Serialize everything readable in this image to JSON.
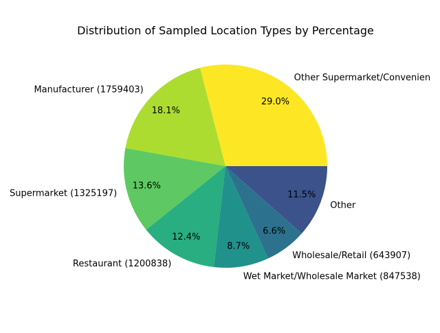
{
  "chart_data": {
    "type": "pie",
    "title": "Distribution of Sampled Location Types by Percentage",
    "slices": [
      {
        "label": "Other Supermarket/Convenien",
        "pct_label": "29.0%",
        "value": 29.0,
        "color": "#fde725"
      },
      {
        "label": "Manufacturer (1759403)",
        "pct_label": "18.1%",
        "value": 18.1,
        "color": "#addc30"
      },
      {
        "label": "Supermarket (1325197)",
        "pct_label": "13.6%",
        "value": 13.6,
        "color": "#5ec962"
      },
      {
        "label": "Restaurant (1200838)",
        "pct_label": "12.4%",
        "value": 12.4,
        "color": "#28ae80"
      },
      {
        "label": "Wet Market/Wholesale Market (847538)",
        "pct_label": "8.7%",
        "value": 8.7,
        "color": "#21918c"
      },
      {
        "label": "Wholesale/Retail (643907)",
        "pct_label": "6.6%",
        "value": 6.6,
        "color": "#2c728e"
      },
      {
        "label": "Other",
        "pct_label": "11.5%",
        "value": 11.5,
        "color": "#3b528b"
      }
    ]
  }
}
